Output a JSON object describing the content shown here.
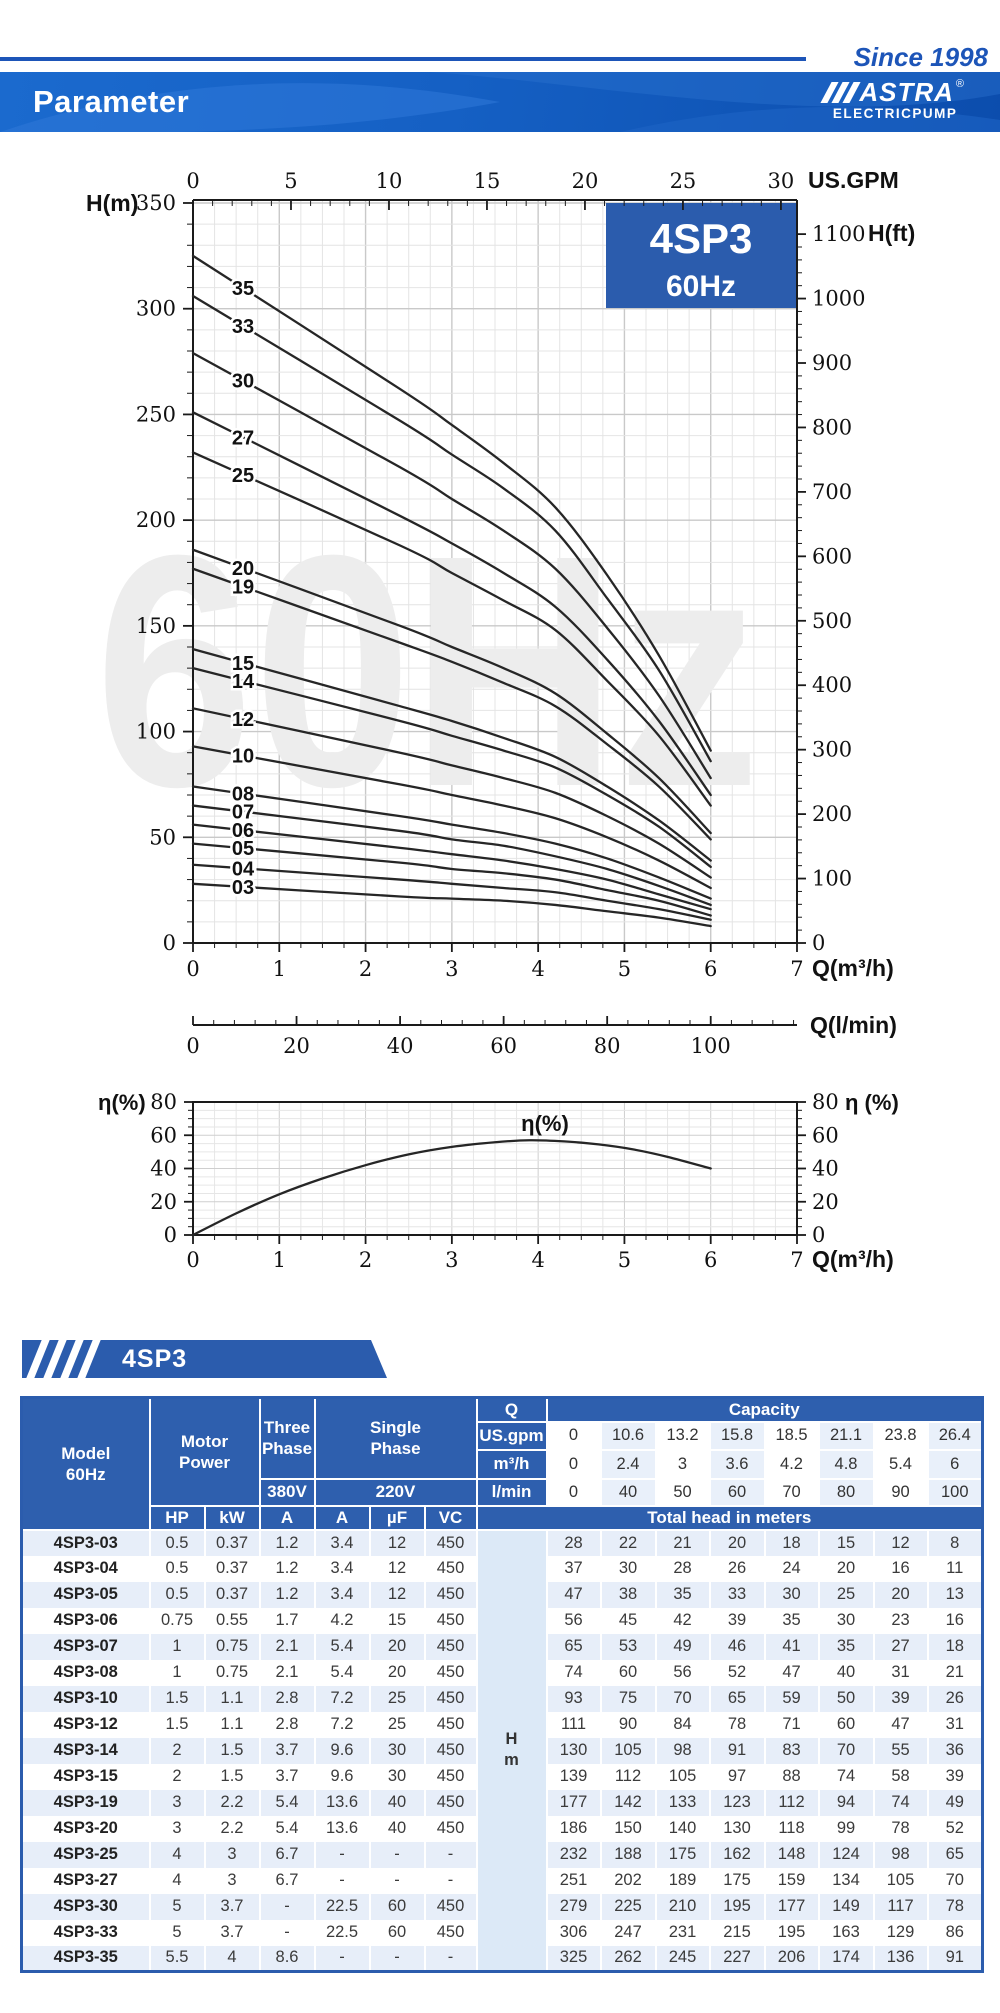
{
  "header": {
    "since": "Since 1998",
    "title": "Parameter",
    "brand_mark": "ASTRA",
    "registered": "®",
    "brand_sub": "ELECTRICPUMP"
  },
  "colors": {
    "brand_blue": "#2b5cad",
    "banner_blue": "#0c4dad",
    "rule_blue": "#1d55b8",
    "alt_row": "#e7eef9",
    "hm_col": "#dce9f7",
    "curve": "#262626"
  },
  "chart": {
    "watermark": "60Hz",
    "title_box": [
      "4SP3",
      "60Hz"
    ],
    "axes": {
      "top": {
        "title": "US.GPM",
        "ticks": [
          "0",
          "5",
          "10",
          "15",
          "20",
          "25",
          "30"
        ]
      },
      "left": {
        "title": "H(m)",
        "ticks": [
          "350",
          "300",
          "250",
          "200",
          "150",
          "100",
          "50",
          "0"
        ]
      },
      "right": {
        "title": "H(ft)",
        "ticks": [
          "1100",
          "1000",
          "900",
          "800",
          "700",
          "600",
          "500",
          "400",
          "300",
          "200",
          "100",
          "0"
        ]
      },
      "bottom": {
        "title": "Q(m³/h)",
        "ticks": [
          "0",
          "1",
          "2",
          "3",
          "4",
          "5",
          "6",
          "7"
        ]
      },
      "lmin": {
        "title": "Q(l/min)",
        "ticks": [
          "0",
          "20",
          "40",
          "60",
          "80",
          "100"
        ]
      },
      "eta": {
        "title": "η(%)",
        "right_title": "η (%)",
        "ticks": [
          "80",
          "60",
          "40",
          "20",
          "0"
        ],
        "curve_label": "η(%)"
      }
    }
  },
  "chart_data": [
    {
      "type": "line",
      "title": "4SP3 60Hz head curves",
      "xlabel": "Q(m³/h)",
      "ylabel": "H(m)",
      "y2label": "H(ft)",
      "xlim": [
        0,
        7
      ],
      "ylim": [
        0,
        350
      ],
      "grid": true,
      "x": [
        0,
        2.4,
        3,
        3.6,
        4.2,
        4.8,
        5.4,
        6
      ],
      "series": [
        {
          "name": "35",
          "values": [
            325,
            262,
            245,
            227,
            206,
            174,
            136,
            91
          ]
        },
        {
          "name": "33",
          "values": [
            306,
            247,
            231,
            215,
            195,
            163,
            129,
            86
          ]
        },
        {
          "name": "30",
          "values": [
            279,
            225,
            210,
            195,
            177,
            149,
            117,
            78
          ]
        },
        {
          "name": "27",
          "values": [
            251,
            202,
            189,
            175,
            159,
            134,
            105,
            70
          ]
        },
        {
          "name": "25",
          "values": [
            232,
            188,
            175,
            162,
            148,
            124,
            98,
            65
          ]
        },
        {
          "name": "20",
          "values": [
            186,
            150,
            140,
            130,
            118,
            99,
            78,
            52
          ]
        },
        {
          "name": "19",
          "values": [
            177,
            142,
            133,
            123,
            112,
            94,
            74,
            49
          ]
        },
        {
          "name": "15",
          "values": [
            139,
            112,
            105,
            97,
            88,
            74,
            58,
            39
          ]
        },
        {
          "name": "14",
          "values": [
            130,
            105,
            98,
            91,
            83,
            70,
            55,
            36
          ]
        },
        {
          "name": "12",
          "values": [
            111,
            90,
            84,
            78,
            71,
            60,
            47,
            31
          ]
        },
        {
          "name": "10",
          "values": [
            93,
            75,
            70,
            65,
            59,
            50,
            39,
            26
          ]
        },
        {
          "name": "08",
          "values": [
            74,
            60,
            56,
            52,
            47,
            40,
            31,
            21
          ]
        },
        {
          "name": "07",
          "values": [
            65,
            53,
            49,
            46,
            41,
            35,
            27,
            18
          ]
        },
        {
          "name": "06",
          "values": [
            56,
            45,
            42,
            39,
            35,
            30,
            23,
            16
          ]
        },
        {
          "name": "05",
          "values": [
            47,
            38,
            35,
            33,
            30,
            25,
            20,
            13
          ]
        },
        {
          "name": "04",
          "values": [
            37,
            30,
            28,
            26,
            24,
            20,
            16,
            11
          ]
        },
        {
          "name": "03",
          "values": [
            28,
            22,
            21,
            20,
            18,
            15,
            12,
            8
          ]
        }
      ]
    },
    {
      "type": "line",
      "title": "Efficiency curve",
      "xlabel": "Q(m³/h)",
      "ylabel": "η(%)",
      "xlim": [
        0,
        7
      ],
      "ylim": [
        0,
        80
      ],
      "grid": true,
      "points": [
        [
          0,
          0
        ],
        [
          0.5,
          13
        ],
        [
          1,
          24.5
        ],
        [
          1.5,
          34
        ],
        [
          2,
          42
        ],
        [
          2.5,
          48.5
        ],
        [
          3,
          53
        ],
        [
          3.5,
          55.8
        ],
        [
          3.9,
          57
        ],
        [
          4.3,
          56.3
        ],
        [
          4.7,
          54.5
        ],
        [
          5.1,
          51.5
        ],
        [
          5.5,
          47
        ],
        [
          6,
          40
        ]
      ]
    }
  ],
  "table": {
    "tab_label": "4SP3",
    "header": {
      "model": "Model\n60Hz",
      "motor": "Motor\nPower",
      "three": "Three\nPhase",
      "v380": "380V",
      "single": "Single\nPhase",
      "v220": "220V",
      "q": "Q",
      "capacity": "Capacity",
      "unit_rows": [
        {
          "label": "US.gpm",
          "values": [
            "0",
            "10.6",
            "13.2",
            "15.8",
            "18.5",
            "21.1",
            "23.8",
            "26.4"
          ]
        },
        {
          "label": "m³/h",
          "values": [
            "0",
            "2.4",
            "3",
            "3.6",
            "4.2",
            "4.8",
            "5.4",
            "6"
          ]
        },
        {
          "label": "l/min",
          "values": [
            "0",
            "40",
            "50",
            "60",
            "70",
            "80",
            "90",
            "100"
          ]
        }
      ],
      "sub": [
        "HP",
        "kW",
        "A",
        "A",
        "µF",
        "VC"
      ],
      "head_span": "Total head in meters",
      "hm": "H\nm"
    },
    "rows": [
      {
        "model": "4SP3-03",
        "specs": [
          "0.5",
          "0.37",
          "1.2",
          "3.4",
          "12",
          "450"
        ],
        "heads": [
          "28",
          "22",
          "21",
          "20",
          "18",
          "15",
          "12",
          "8"
        ]
      },
      {
        "model": "4SP3-04",
        "specs": [
          "0.5",
          "0.37",
          "1.2",
          "3.4",
          "12",
          "450"
        ],
        "heads": [
          "37",
          "30",
          "28",
          "26",
          "24",
          "20",
          "16",
          "11"
        ]
      },
      {
        "model": "4SP3-05",
        "specs": [
          "0.5",
          "0.37",
          "1.2",
          "3.4",
          "12",
          "450"
        ],
        "heads": [
          "47",
          "38",
          "35",
          "33",
          "30",
          "25",
          "20",
          "13"
        ]
      },
      {
        "model": "4SP3-06",
        "specs": [
          "0.75",
          "0.55",
          "1.7",
          "4.2",
          "15",
          "450"
        ],
        "heads": [
          "56",
          "45",
          "42",
          "39",
          "35",
          "30",
          "23",
          "16"
        ]
      },
      {
        "model": "4SP3-07",
        "specs": [
          "1",
          "0.75",
          "2.1",
          "5.4",
          "20",
          "450"
        ],
        "heads": [
          "65",
          "53",
          "49",
          "46",
          "41",
          "35",
          "27",
          "18"
        ]
      },
      {
        "model": "4SP3-08",
        "specs": [
          "1",
          "0.75",
          "2.1",
          "5.4",
          "20",
          "450"
        ],
        "heads": [
          "74",
          "60",
          "56",
          "52",
          "47",
          "40",
          "31",
          "21"
        ]
      },
      {
        "model": "4SP3-10",
        "specs": [
          "1.5",
          "1.1",
          "2.8",
          "7.2",
          "25",
          "450"
        ],
        "heads": [
          "93",
          "75",
          "70",
          "65",
          "59",
          "50",
          "39",
          "26"
        ]
      },
      {
        "model": "4SP3-12",
        "specs": [
          "1.5",
          "1.1",
          "2.8",
          "7.2",
          "25",
          "450"
        ],
        "heads": [
          "111",
          "90",
          "84",
          "78",
          "71",
          "60",
          "47",
          "31"
        ]
      },
      {
        "model": "4SP3-14",
        "specs": [
          "2",
          "1.5",
          "3.7",
          "9.6",
          "30",
          "450"
        ],
        "heads": [
          "130",
          "105",
          "98",
          "91",
          "83",
          "70",
          "55",
          "36"
        ]
      },
      {
        "model": "4SP3-15",
        "specs": [
          "2",
          "1.5",
          "3.7",
          "9.6",
          "30",
          "450"
        ],
        "heads": [
          "139",
          "112",
          "105",
          "97",
          "88",
          "74",
          "58",
          "39"
        ]
      },
      {
        "model": "4SP3-19",
        "specs": [
          "3",
          "2.2",
          "5.4",
          "13.6",
          "40",
          "450"
        ],
        "heads": [
          "177",
          "142",
          "133",
          "123",
          "112",
          "94",
          "74",
          "49"
        ]
      },
      {
        "model": "4SP3-20",
        "specs": [
          "3",
          "2.2",
          "5.4",
          "13.6",
          "40",
          "450"
        ],
        "heads": [
          "186",
          "150",
          "140",
          "130",
          "118",
          "99",
          "78",
          "52"
        ]
      },
      {
        "model": "4SP3-25",
        "specs": [
          "4",
          "3",
          "6.7",
          "-",
          "-",
          "-"
        ],
        "heads": [
          "232",
          "188",
          "175",
          "162",
          "148",
          "124",
          "98",
          "65"
        ]
      },
      {
        "model": "4SP3-27",
        "specs": [
          "4",
          "3",
          "6.7",
          "-",
          "-",
          "-"
        ],
        "heads": [
          "251",
          "202",
          "189",
          "175",
          "159",
          "134",
          "105",
          "70"
        ]
      },
      {
        "model": "4SP3-30",
        "specs": [
          "5",
          "3.7",
          "-",
          "22.5",
          "60",
          "450"
        ],
        "heads": [
          "279",
          "225",
          "210",
          "195",
          "177",
          "149",
          "117",
          "78"
        ]
      },
      {
        "model": "4SP3-33",
        "specs": [
          "5",
          "3.7",
          "-",
          "22.5",
          "60",
          "450"
        ],
        "heads": [
          "306",
          "247",
          "231",
          "215",
          "195",
          "163",
          "129",
          "86"
        ]
      },
      {
        "model": "4SP3-35",
        "specs": [
          "5.5",
          "4",
          "8.6",
          "-",
          "-",
          "-"
        ],
        "heads": [
          "325",
          "262",
          "245",
          "227",
          "206",
          "174",
          "136",
          "91"
        ]
      }
    ]
  }
}
